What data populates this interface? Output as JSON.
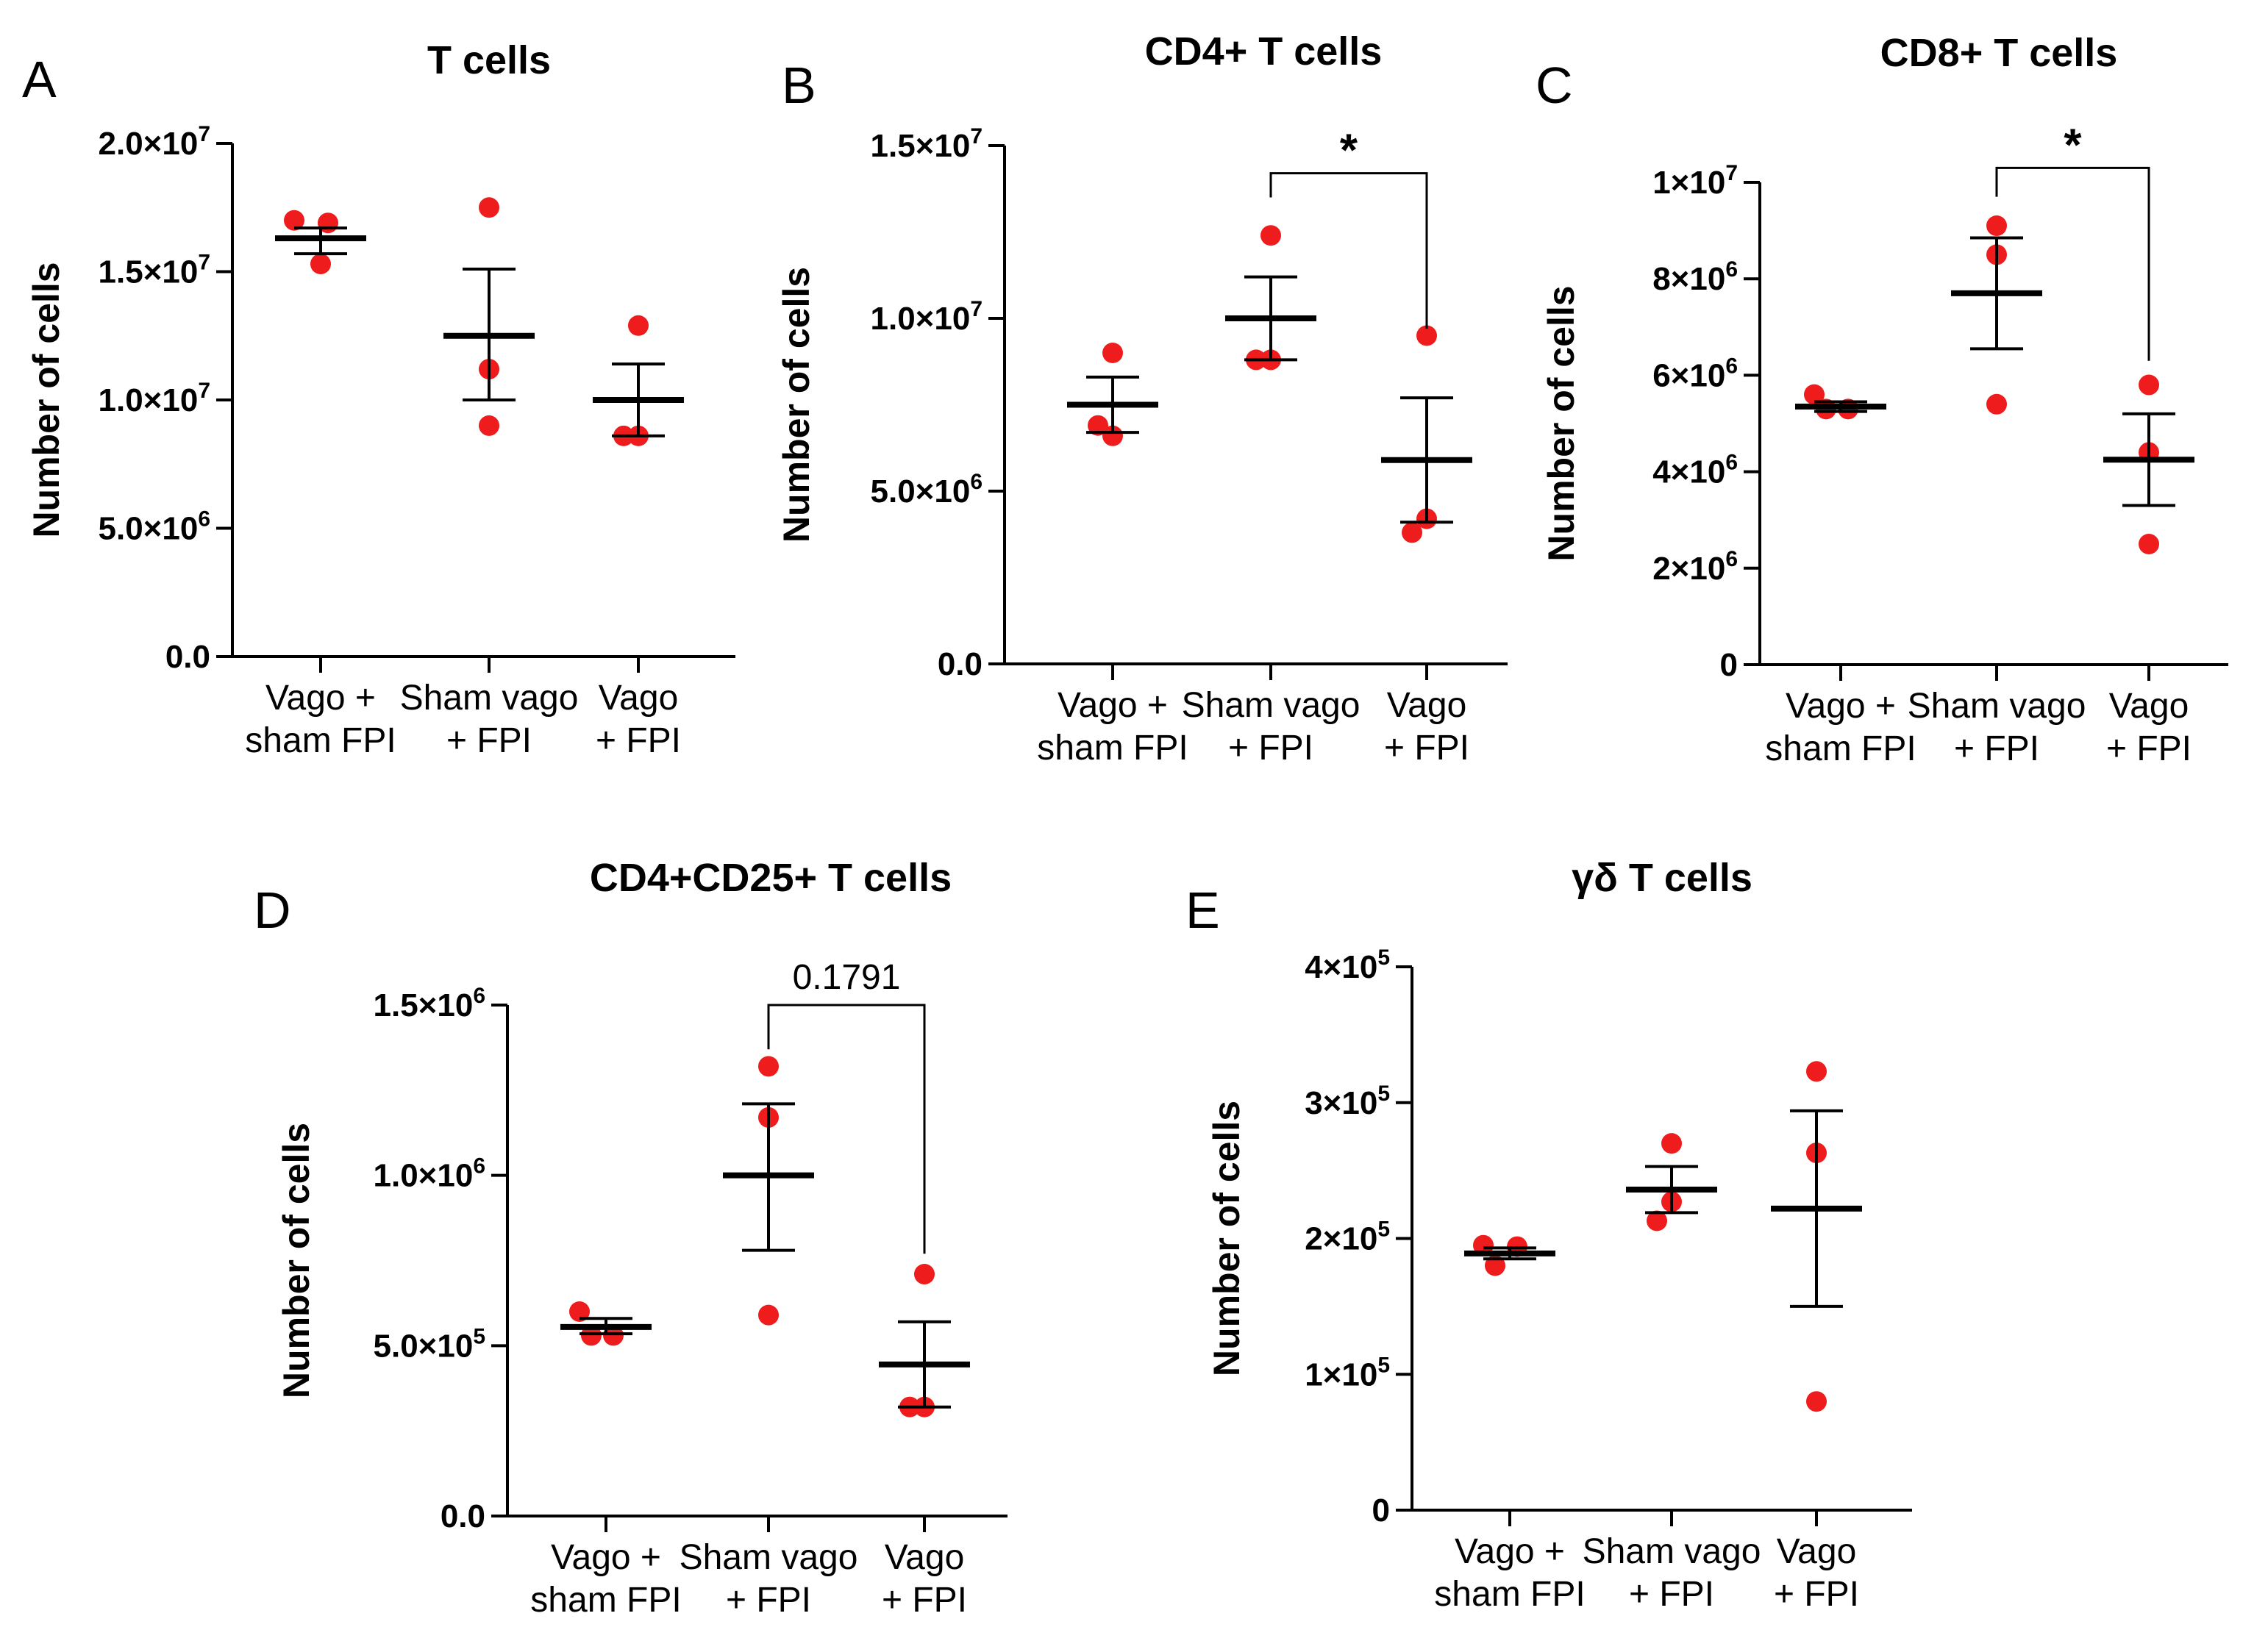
{
  "chart_data": [
    {
      "panel": "A",
      "type": "scatter",
      "title": "T cells",
      "ylabel": "Number of cells",
      "ylim": [
        0,
        20000000
      ],
      "yticks": [
        {
          "value": 0,
          "mant": "0.0"
        },
        {
          "value": 5000000,
          "mant": "5.0",
          "exp": "6"
        },
        {
          "value": 10000000,
          "mant": "1.0",
          "exp": "7"
        },
        {
          "value": 15000000,
          "mant": "1.5",
          "exp": "7"
        },
        {
          "value": 20000000,
          "mant": "2.0",
          "exp": "7"
        }
      ],
      "categories": [
        [
          "Vago  +",
          "sham FPI"
        ],
        [
          "Sham vago",
          "+ FPI"
        ],
        [
          "Vago",
          "+ FPI"
        ]
      ],
      "groups": [
        {
          "points": [
            17000000,
            16900000,
            15300000
          ],
          "mean": 16300000,
          "sem_low": 15700000,
          "sem_high": 16700000
        },
        {
          "points": [
            17500000,
            11200000,
            9000000
          ],
          "mean": 12500000,
          "sem_low": 10000000,
          "sem_high": 15100000
        },
        {
          "points": [
            12900000,
            8600000,
            8600000
          ],
          "mean": 10000000,
          "sem_low": 8600000,
          "sem_high": 11400000
        }
      ],
      "comparisons": []
    },
    {
      "panel": "B",
      "type": "scatter",
      "title": "CD4+ T cells",
      "ylabel": "Number of cells",
      "ylim": [
        0,
        15000000
      ],
      "yticks": [
        {
          "value": 0,
          "mant": "0.0"
        },
        {
          "value": 5000000,
          "mant": "5.0",
          "exp": "6"
        },
        {
          "value": 10000000,
          "mant": "1.0",
          "exp": "7"
        },
        {
          "value": 15000000,
          "mant": "1.5",
          "exp": "7"
        }
      ],
      "categories": [
        [
          "Vago  +",
          "sham FPI"
        ],
        [
          "Sham vago",
          "+ FPI"
        ],
        [
          "Vago",
          "+ FPI"
        ]
      ],
      "groups": [
        {
          "points": [
            9000000,
            6600000,
            6900000
          ],
          "mean": 7500000,
          "sem_low": 6700000,
          "sem_high": 8300000
        },
        {
          "points": [
            12400000,
            8800000,
            8800000
          ],
          "mean": 10000000,
          "sem_low": 8800000,
          "sem_high": 11200000
        },
        {
          "points": [
            9500000,
            4200000,
            3800000
          ],
          "mean": 5900000,
          "sem_low": 4100000,
          "sem_high": 7700000
        }
      ],
      "comparisons": [
        {
          "from": 1,
          "to": 2,
          "label": "*",
          "value": 14200000,
          "drop_from": 13500000,
          "drop_to": 9700000
        }
      ]
    },
    {
      "panel": "C",
      "type": "scatter",
      "title": "CD8+ T cells",
      "ylabel": "Number of cells",
      "ylim": [
        0,
        10000000
      ],
      "yticks": [
        {
          "value": 0,
          "mant": "0"
        },
        {
          "value": 2000000,
          "mant": "2",
          "exp": "6"
        },
        {
          "value": 4000000,
          "mant": "4",
          "exp": "6"
        },
        {
          "value": 6000000,
          "mant": "6",
          "exp": "6"
        },
        {
          "value": 8000000,
          "mant": "8",
          "exp": "6"
        },
        {
          "value": 10000000,
          "mant": "1",
          "exp": "7"
        }
      ],
      "categories": [
        [
          "Vago  +",
          "sham FPI"
        ],
        [
          "Sham vago",
          "+ FPI"
        ],
        [
          "Vago",
          "+ FPI"
        ]
      ],
      "groups": [
        {
          "points": [
            5600000,
            5300000,
            5300000
          ],
          "mean": 5350000,
          "sem_low": 5250000,
          "sem_high": 5450000
        },
        {
          "points": [
            9100000,
            8500000,
            5400000
          ],
          "mean": 7700000,
          "sem_low": 6550000,
          "sem_high": 8850000
        },
        {
          "points": [
            5800000,
            4400000,
            2500000
          ],
          "mean": 4250000,
          "sem_low": 3300000,
          "sem_high": 5200000
        }
      ],
      "comparisons": [
        {
          "from": 1,
          "to": 2,
          "label": "*",
          "value": 10300000,
          "drop_from": 9700000,
          "drop_to": 6300000
        }
      ]
    },
    {
      "panel": "D",
      "type": "scatter",
      "title": "CD4+CD25+ T cells",
      "ylabel": "Number of cells",
      "ylim": [
        0,
        1500000
      ],
      "yticks": [
        {
          "value": 0,
          "mant": "0.0"
        },
        {
          "value": 500000,
          "mant": "5.0",
          "exp": "5"
        },
        {
          "value": 1000000,
          "mant": "1.0",
          "exp": "6"
        },
        {
          "value": 1500000,
          "mant": "1.5",
          "exp": "6"
        }
      ],
      "categories": [
        [
          "Vago  +",
          "sham FPI"
        ],
        [
          "Sham vago",
          "+ FPI"
        ],
        [
          "Vago",
          "+ FPI"
        ]
      ],
      "groups": [
        {
          "points": [
            600000,
            530000,
            530000
          ],
          "mean": 555000,
          "sem_low": 535000,
          "sem_high": 580000
        },
        {
          "points": [
            1320000,
            1170000,
            590000
          ],
          "mean": 1000000,
          "sem_low": 780000,
          "sem_high": 1210000
        },
        {
          "points": [
            710000,
            320000,
            320000
          ],
          "mean": 445000,
          "sem_low": 320000,
          "sem_high": 570000
        }
      ],
      "comparisons": [
        {
          "from": 1,
          "to": 2,
          "label": "0.1791",
          "value": 1500000,
          "drop_from": 1370000,
          "drop_to": 770000
        }
      ]
    },
    {
      "panel": "E",
      "type": "scatter",
      "title": "γδ T cells",
      "ylabel": "Number of cells",
      "ylim": [
        0,
        400000
      ],
      "yticks": [
        {
          "value": 0,
          "mant": "0"
        },
        {
          "value": 100000,
          "mant": "1",
          "exp": "5"
        },
        {
          "value": 200000,
          "mant": "2",
          "exp": "5"
        },
        {
          "value": 300000,
          "mant": "3",
          "exp": "5"
        },
        {
          "value": 400000,
          "mant": "4",
          "exp": "5"
        }
      ],
      "categories": [
        [
          "Vago  +",
          "sham FPI"
        ],
        [
          "Sham vago",
          "+ FPI"
        ],
        [
          "Vago",
          "+ FPI"
        ]
      ],
      "groups": [
        {
          "points": [
            195000,
            194000,
            180000
          ],
          "mean": 189000,
          "sem_low": 185000,
          "sem_high": 193000
        },
        {
          "points": [
            270000,
            227000,
            213000
          ],
          "mean": 236000,
          "sem_low": 219000,
          "sem_high": 253000
        },
        {
          "points": [
            323000,
            263000,
            80000
          ],
          "mean": 222000,
          "sem_low": 150000,
          "sem_high": 294000
        }
      ],
      "comparisons": []
    }
  ],
  "colors": {
    "point": "#ee1c1c",
    "line": "#000000"
  }
}
